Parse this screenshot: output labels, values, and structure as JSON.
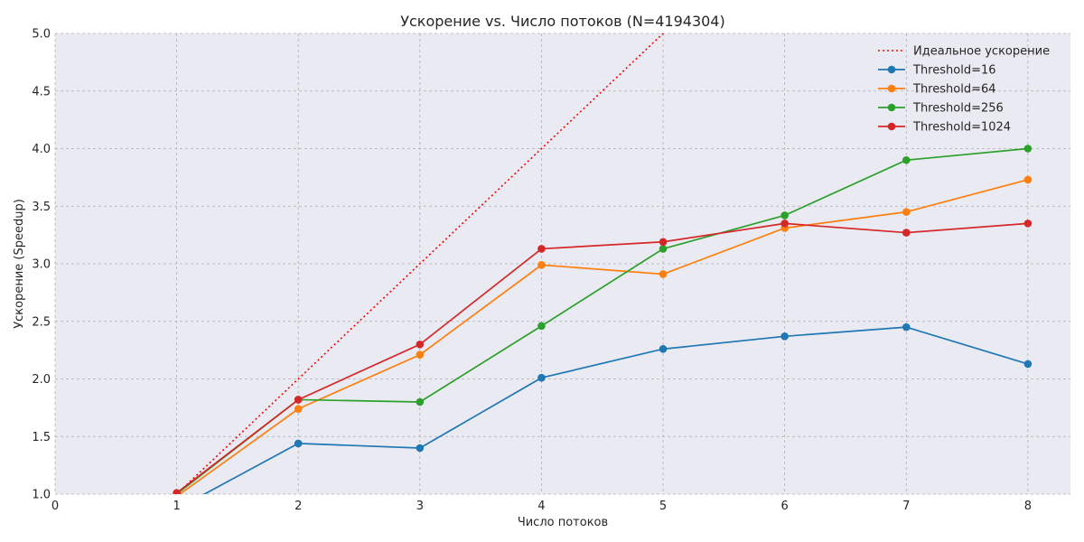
{
  "chart_data": {
    "type": "line",
    "title": "Ускорение vs. Число потоков (N=4194304)",
    "xlabel": "Число потоков",
    "ylabel": "Ускорение (Speedup)",
    "xlim": [
      0,
      8.35
    ],
    "ylim": [
      1.0,
      5.0
    ],
    "xticks": [
      "0",
      "1",
      "2",
      "3",
      "4",
      "5",
      "6",
      "7",
      "8"
    ],
    "yticks": [
      "1.0",
      "1.5",
      "2.0",
      "2.5",
      "3.0",
      "3.5",
      "4.0",
      "4.5",
      "5.0"
    ],
    "grid": true,
    "legend_position": "top-right",
    "x": [
      1,
      2,
      3,
      4,
      5,
      6,
      7,
      8
    ],
    "ideal": {
      "name": "Идеальное ускорение",
      "color": "#ff0000",
      "x": [
        1,
        8
      ],
      "y": [
        1,
        8
      ]
    },
    "series": [
      {
        "name": "Threshold=16",
        "color": "#1f77b4",
        "values": [
          0.87,
          1.44,
          1.4,
          2.01,
          2.26,
          2.37,
          2.45,
          2.13
        ]
      },
      {
        "name": "Threshold=64",
        "color": "#ff7f0e",
        "values": [
          0.98,
          1.74,
          2.21,
          2.99,
          2.91,
          3.31,
          3.45,
          3.73
        ]
      },
      {
        "name": "Threshold=256",
        "color": "#2ca02c",
        "values": [
          1.0,
          1.82,
          1.8,
          2.46,
          3.13,
          3.42,
          3.9,
          4.0
        ]
      },
      {
        "name": "Threshold=1024",
        "color": "#d62728",
        "values": [
          1.01,
          1.82,
          2.3,
          3.13,
          3.19,
          3.35,
          3.27,
          3.35
        ]
      }
    ]
  }
}
